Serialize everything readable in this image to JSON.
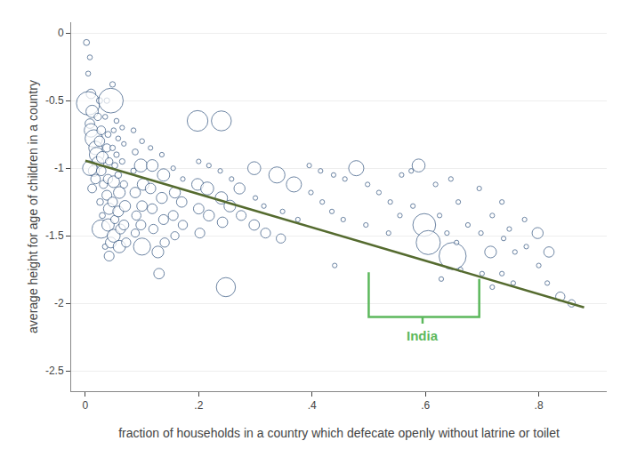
{
  "chart_data": {
    "type": "scatter",
    "xlabel": "fraction of households in a country which defecate openly without latrine or toilet",
    "ylabel": "average height for age of children in a country",
    "xlim": [
      -0.025,
      0.92
    ],
    "ylim": [
      -2.65,
      0.08
    ],
    "xticks": [
      0,
      {
        "value": 0.2,
        "label": ".2"
      },
      {
        "value": 0.4,
        "label": ".4"
      },
      {
        "value": 0.6,
        "label": ".6"
      },
      {
        "value": 0.8,
        "label": ".8"
      }
    ],
    "yticks": [
      0,
      -0.5,
      -1,
      -1.5,
      -2,
      -2.5
    ],
    "grid": "y",
    "series": [
      {
        "type": "scatter",
        "color": "#1a3f6f",
        "marker": "hollow",
        "x": [
          0.002,
          0.008,
          0.005,
          0.01,
          0.005,
          0.012,
          0.008,
          0.01,
          0.015,
          0.018,
          0.02,
          0.022,
          0.015,
          0.018,
          0.012,
          0.008,
          0.025,
          0.022,
          0.028,
          0.025,
          0.03,
          0.028,
          0.032,
          0.026,
          0.03,
          0.028,
          0.035,
          0.038,
          0.035,
          0.04,
          0.038,
          0.042,
          0.04,
          0.038,
          0.042,
          0.04,
          0.045,
          0.042,
          0.048,
          0.045,
          0.05,
          0.048,
          0.052,
          0.05,
          0.048,
          0.052,
          0.05,
          0.055,
          0.058,
          0.055,
          0.058,
          0.06,
          0.058,
          0.062,
          0.06,
          0.065,
          0.068,
          0.065,
          0.068,
          0.07,
          0.068,
          0.072,
          0.085,
          0.088,
          0.085,
          0.088,
          0.09,
          0.088,
          0.1,
          0.098,
          0.102,
          0.1,
          0.098,
          0.1,
          0.115,
          0.118,
          0.115,
          0.118,
          0.12,
          0.128,
          0.13,
          0.135,
          0.138,
          0.135,
          0.138,
          0.14,
          0.155,
          0.158,
          0.155,
          0.158,
          0.172,
          0.17,
          0.172,
          0.198,
          0.2,
          0.198,
          0.2,
          0.202,
          0.218,
          0.215,
          0.218,
          0.24,
          0.238,
          0.24,
          0.242,
          0.248,
          0.258,
          0.255,
          0.272,
          0.275,
          0.298,
          0.3,
          0.298,
          0.315,
          0.318,
          0.338,
          0.348,
          0.345,
          0.368,
          0.375,
          0.395,
          0.398,
          0.415,
          0.418,
          0.438,
          0.435,
          0.44,
          0.458,
          0.455,
          0.478,
          0.498,
          0.495,
          0.518,
          0.538,
          0.535,
          0.558,
          0.555,
          0.575,
          0.578,
          0.588,
          0.598,
          0.605,
          0.618,
          0.625,
          0.628,
          0.638,
          0.645,
          0.648,
          0.658,
          0.655,
          0.662,
          0.675,
          0.695,
          0.698,
          0.7,
          0.718,
          0.715,
          0.718,
          0.735,
          0.738,
          0.735,
          0.748,
          0.758,
          0.755,
          0.775,
          0.778,
          0.798,
          0.8,
          0.818,
          0.815,
          0.838,
          0.858
        ],
        "values": [
          -0.07,
          -0.18,
          -0.3,
          -0.45,
          -0.52,
          -0.58,
          -0.67,
          -0.72,
          -0.78,
          -0.85,
          -0.9,
          -0.96,
          -1.02,
          -1.08,
          -1.15,
          -1.0,
          -0.5,
          -0.62,
          -0.72,
          -0.8,
          -0.92,
          -1.02,
          -1.12,
          -1.25,
          -1.35,
          -1.45,
          -1.58,
          -0.5,
          -0.62,
          -0.75,
          -0.85,
          -0.95,
          -1.08,
          -1.2,
          -1.3,
          -1.42,
          -1.55,
          -1.65,
          -0.38,
          -0.5,
          -0.72,
          -0.85,
          -0.98,
          -1.1,
          -1.25,
          -1.38,
          -1.5,
          -0.65,
          -0.78,
          -0.9,
          -1.05,
          -1.18,
          -1.32,
          -1.45,
          -1.58,
          -0.7,
          -0.82,
          -0.95,
          -1.12,
          -1.28,
          -1.42,
          -1.55,
          -0.72,
          -0.88,
          -1.02,
          -1.18,
          -1.35,
          -1.48,
          -0.8,
          -0.98,
          -1.12,
          -1.28,
          -1.42,
          -1.58,
          -0.85,
          -0.98,
          -1.15,
          -1.3,
          -1.45,
          -1.62,
          -1.78,
          -0.9,
          -1.05,
          -1.22,
          -1.38,
          -1.55,
          -1.0,
          -1.18,
          -1.35,
          -1.5,
          -1.08,
          -1.25,
          -1.42,
          -0.65,
          -0.95,
          -1.12,
          -1.3,
          -1.48,
          -0.98,
          -1.15,
          -1.35,
          -0.65,
          -1.02,
          -1.22,
          -1.4,
          -1.88,
          -1.08,
          -1.28,
          -1.15,
          -1.35,
          -1.0,
          -1.22,
          -1.42,
          -1.28,
          -1.48,
          -1.05,
          -1.32,
          -1.52,
          -1.12,
          -1.38,
          -0.98,
          -1.18,
          -1.02,
          -1.25,
          -1.05,
          -1.32,
          -1.72,
          -1.08,
          -1.38,
          -1.0,
          -1.12,
          -1.42,
          -1.18,
          -1.25,
          -1.48,
          -1.05,
          -1.35,
          -1.02,
          -1.28,
          -0.98,
          -1.42,
          -1.55,
          -1.12,
          -1.35,
          -1.82,
          -1.48,
          -1.08,
          -1.65,
          -1.25,
          -1.55,
          -1.75,
          -1.42,
          -1.15,
          -1.48,
          -1.78,
          -1.35,
          -1.62,
          -1.88,
          -1.25,
          -1.52,
          -1.78,
          -1.45,
          -1.62,
          -1.85,
          -1.38,
          -1.58,
          -1.48,
          -1.72,
          -1.62,
          -1.85,
          -1.95,
          -2.0
        ],
        "sizes": [
          12,
          8,
          8,
          30,
          180,
          50,
          30,
          60,
          100,
          60,
          70,
          50,
          40,
          30,
          25,
          70,
          12,
          18,
          25,
          35,
          45,
          30,
          22,
          15,
          12,
          110,
          10,
          10,
          8,
          12,
          22,
          18,
          28,
          32,
          42,
          50,
          38,
          32,
          10,
          200,
          8,
          10,
          12,
          45,
          32,
          22,
          55,
          8,
          8,
          10,
          15,
          45,
          38,
          32,
          50,
          7,
          7,
          10,
          18,
          40,
          32,
          28,
          8,
          12,
          10,
          36,
          28,
          22,
          8,
          55,
          45,
          36,
          32,
          95,
          7,
          45,
          36,
          32,
          28,
          45,
          36,
          7,
          50,
          40,
          32,
          28,
          7,
          40,
          32,
          22,
          7,
          36,
          28,
          140,
          7,
          45,
          36,
          32,
          7,
          55,
          40,
          130,
          7,
          50,
          36,
          120,
          7,
          45,
          40,
          32,
          55,
          7,
          36,
          7,
          32,
          85,
          7,
          28,
          75,
          7,
          7,
          7,
          7,
          7,
          7,
          7,
          7,
          7,
          7,
          75,
          7,
          7,
          7,
          7,
          7,
          7,
          7,
          7,
          7,
          55,
          170,
          190,
          7,
          7,
          7,
          7,
          7,
          240,
          7,
          7,
          7,
          7,
          7,
          7,
          7,
          7,
          45,
          7,
          7,
          7,
          7,
          7,
          7,
          7,
          7,
          7,
          40,
          7,
          35,
          7,
          28,
          18
        ]
      },
      {
        "type": "line",
        "color": "#556B2F",
        "x": [
          0.0,
          0.88
        ],
        "values": [
          -0.945,
          -2.03
        ]
      }
    ],
    "annotations": [
      {
        "text": "India",
        "x": 0.595,
        "y": -2.17,
        "color": "#5cb85c",
        "bracket_x": [
          0.5,
          0.5,
          0.695,
          0.695,
          null,
          0.595,
          0.595
        ],
        "bracket_y": [
          -1.77,
          -2.1,
          -2.1,
          -1.82,
          null,
          -2.1,
          -2.15
        ]
      }
    ]
  }
}
